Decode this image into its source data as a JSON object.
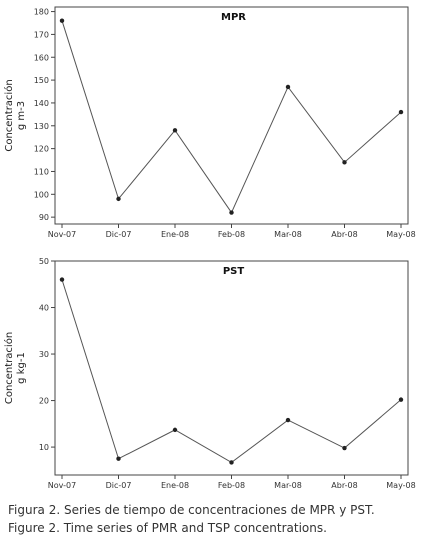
{
  "chart_data": [
    {
      "type": "line",
      "title": "MPR",
      "ylabel_line1": "Concentración",
      "ylabel_line2": "g m-3",
      "categories": [
        "Nov-07",
        "Dic-07",
        "Ene-08",
        "Feb-08",
        "Mar-08",
        "Abr-08",
        "May-08"
      ],
      "values": [
        176,
        98,
        128,
        92,
        147,
        114,
        136
      ],
      "ylim": [
        87,
        182
      ],
      "yticks": [
        90,
        100,
        110,
        120,
        130,
        140,
        150,
        160,
        170,
        180
      ],
      "grid": false
    },
    {
      "type": "line",
      "title": "PST",
      "ylabel_line1": "Concentración",
      "ylabel_line2": "g kg-1",
      "categories": [
        "Nov-07",
        "Dic-07",
        "Ene-08",
        "Feb-08",
        "Mar-08",
        "Abr-08",
        "May-08"
      ],
      "values": [
        46,
        7.5,
        13.7,
        6.7,
        15.8,
        9.8,
        20.2
      ],
      "ylim": [
        4,
        50
      ],
      "yticks": [
        10,
        20,
        30,
        40,
        50
      ],
      "grid": false
    }
  ],
  "caption": {
    "line1": "Figura 2. Series de tiempo de concentraciones de MPR y PST.",
    "line2": "Figure 2. Time series of PMR and TSP concentrations."
  },
  "colors": {
    "line": "#555555",
    "point": "#222222",
    "axis": "#444444"
  }
}
